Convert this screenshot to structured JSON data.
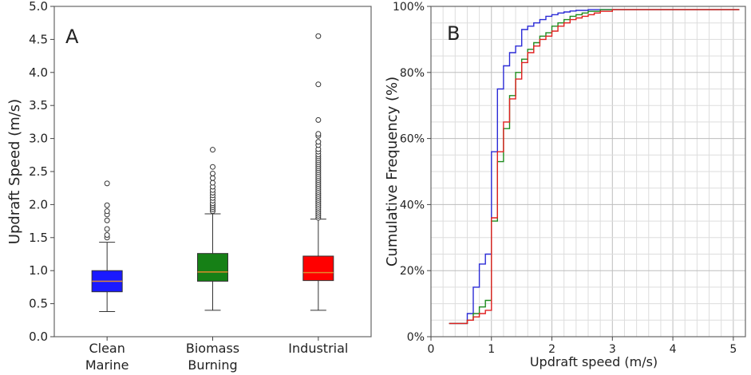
{
  "chart_data": [
    {
      "type": "box",
      "panel_label": "A",
      "ylabel": "Updraft Speed (m/s)",
      "ylim": [
        0.0,
        5.0
      ],
      "yticks": [
        "0.0",
        "0.5",
        "1.0",
        "1.5",
        "2.0",
        "2.5",
        "3.0",
        "3.5",
        "4.0",
        "4.5",
        "5.0"
      ],
      "grid": false,
      "categories": [
        {
          "lines": [
            "Clean",
            "Marine"
          ],
          "color": "#1a1aff",
          "median_color": "#e08a2c",
          "whisker_low": 0.38,
          "q1": 0.68,
          "median": 0.84,
          "q3": 1.0,
          "whisker_high": 1.43,
          "outliers": [
            1.5,
            1.54,
            1.63,
            1.76,
            1.85,
            1.9,
            1.99,
            2.32
          ]
        },
        {
          "lines": [
            "Biomass",
            "Burning"
          ],
          "color": "#168016",
          "median_color": "#e08a2c",
          "whisker_low": 0.4,
          "q1": 0.84,
          "median": 0.98,
          "q3": 1.26,
          "whisker_high": 1.86,
          "outliers": [
            1.9,
            1.93,
            1.96,
            1.99,
            2.02,
            2.06,
            2.1,
            2.14,
            2.18,
            2.22,
            2.27,
            2.33,
            2.4,
            2.47,
            2.57,
            2.83
          ]
        },
        {
          "lines": [
            "Industrial"
          ],
          "color": "#ff0000",
          "median_color": "#e08a2c",
          "whisker_low": 0.4,
          "q1": 0.85,
          "median": 0.97,
          "q3": 1.22,
          "whisker_high": 1.78,
          "outliers": [
            1.8,
            1.83,
            1.86,
            1.89,
            1.92,
            1.95,
            1.98,
            2.01,
            2.04,
            2.07,
            2.1,
            2.13,
            2.16,
            2.19,
            2.22,
            2.25,
            2.28,
            2.31,
            2.34,
            2.37,
            2.4,
            2.43,
            2.46,
            2.49,
            2.52,
            2.55,
            2.58,
            2.61,
            2.64,
            2.67,
            2.7,
            2.73,
            2.76,
            2.8,
            2.84,
            2.9,
            2.95,
            3.04,
            3.07,
            3.28,
            3.82,
            4.55
          ]
        }
      ]
    },
    {
      "type": "line",
      "step": true,
      "panel_label": "B",
      "xlabel": "Updraft speed (m/s)",
      "ylabel": "Cumulative Frequency (%)",
      "xlim": [
        0,
        5.2
      ],
      "ylim": [
        0,
        100
      ],
      "xticks": [
        "0",
        "1",
        "2",
        "3",
        "4",
        "5"
      ],
      "yticks": [
        "0%",
        "20%",
        "40%",
        "60%",
        "80%",
        "100%"
      ],
      "grid": true,
      "series": [
        {
          "color": "#2b2bd6",
          "x": [
            0.3,
            0.6,
            0.7,
            0.8,
            0.9,
            1.0,
            1.1,
            1.2,
            1.3,
            1.4,
            1.5,
            1.6,
            1.7,
            1.8,
            1.9,
            2.0,
            2.1,
            2.2,
            2.3,
            2.4,
            2.6,
            5.1
          ],
          "y": [
            4,
            7,
            15,
            22,
            25,
            56,
            75,
            82,
            86,
            88,
            93,
            94,
            95,
            96,
            97,
            97.5,
            98,
            98.3,
            98.6,
            98.8,
            99,
            99
          ]
        },
        {
          "color": "#1e8c1e",
          "x": [
            0.3,
            0.6,
            0.7,
            0.8,
            0.9,
            1.0,
            1.1,
            1.2,
            1.3,
            1.4,
            1.5,
            1.6,
            1.7,
            1.8,
            1.9,
            2.0,
            2.1,
            2.2,
            2.3,
            2.4,
            2.5,
            2.6,
            2.8,
            3.0,
            5.1
          ],
          "y": [
            4,
            5,
            7,
            9,
            11,
            35,
            53,
            63,
            73,
            80,
            84,
            87,
            89,
            91,
            92,
            94,
            95,
            96,
            97,
            97.5,
            98,
            98.5,
            99,
            99,
            99
          ]
        },
        {
          "color": "#e02020",
          "x": [
            0.3,
            0.6,
            0.7,
            0.8,
            0.9,
            1.0,
            1.1,
            1.2,
            1.3,
            1.4,
            1.5,
            1.6,
            1.7,
            1.8,
            1.9,
            2.0,
            2.1,
            2.2,
            2.3,
            2.4,
            2.5,
            2.6,
            2.7,
            2.8,
            3.0,
            5.1
          ],
          "y": [
            4,
            5,
            6,
            7,
            8,
            36,
            56,
            65,
            72,
            78,
            83,
            86,
            88,
            90,
            91,
            92.5,
            94,
            95,
            96,
            96.5,
            97,
            97.5,
            98,
            98.5,
            99,
            99
          ]
        }
      ]
    }
  ]
}
